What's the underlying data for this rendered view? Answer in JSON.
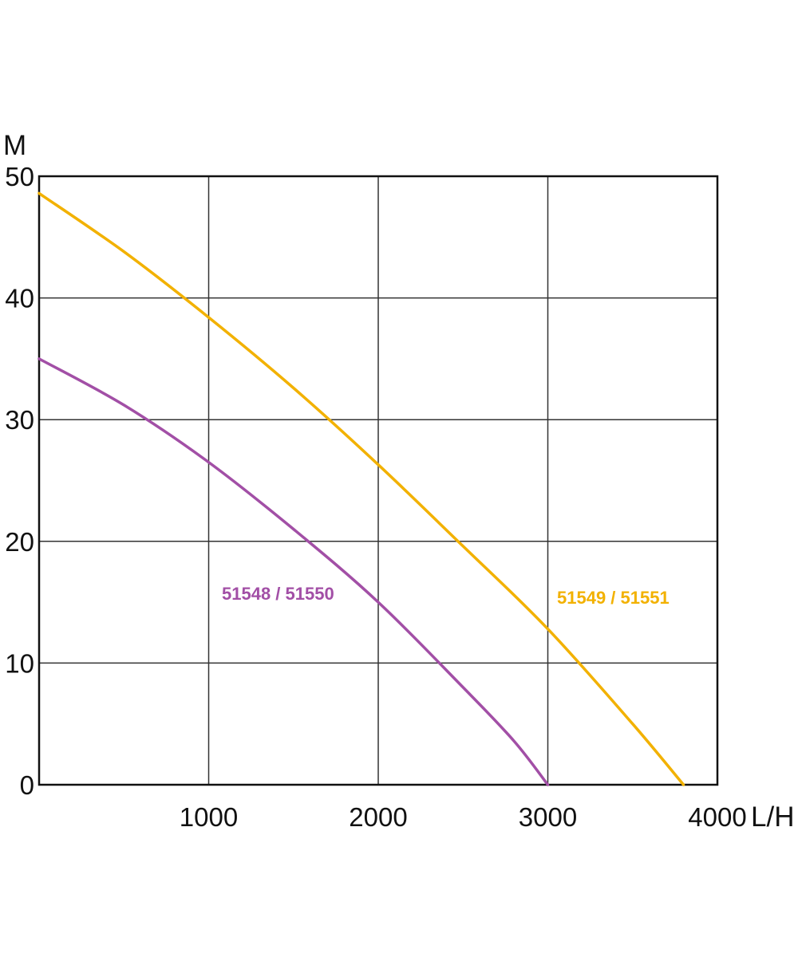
{
  "chart_data": {
    "type": "line",
    "ylabel": "M",
    "xlabel": "L/H",
    "xlim": [
      0,
      4000
    ],
    "ylim": [
      0,
      50
    ],
    "x_ticks": [
      "1000",
      "2000",
      "3000",
      "4000"
    ],
    "y_ticks": [
      "0",
      "10",
      "20",
      "30",
      "40",
      "50"
    ],
    "grid": true,
    "series": [
      {
        "name": "51548 / 51550",
        "color": "#a24fa6",
        "x": [
          0,
          500,
          1000,
          1500,
          2000,
          2500,
          2800,
          3000
        ],
        "y": [
          35,
          31.2,
          26.5,
          21,
          15,
          8,
          3.6,
          0
        ]
      },
      {
        "name": "51549 / 51551",
        "color": "#f2b100",
        "x": [
          0,
          500,
          1000,
          1500,
          2000,
          2500,
          3000,
          3500,
          3800
        ],
        "y": [
          48.6,
          43.8,
          38.4,
          32.6,
          26.3,
          19.6,
          12.8,
          5,
          0
        ]
      }
    ]
  }
}
